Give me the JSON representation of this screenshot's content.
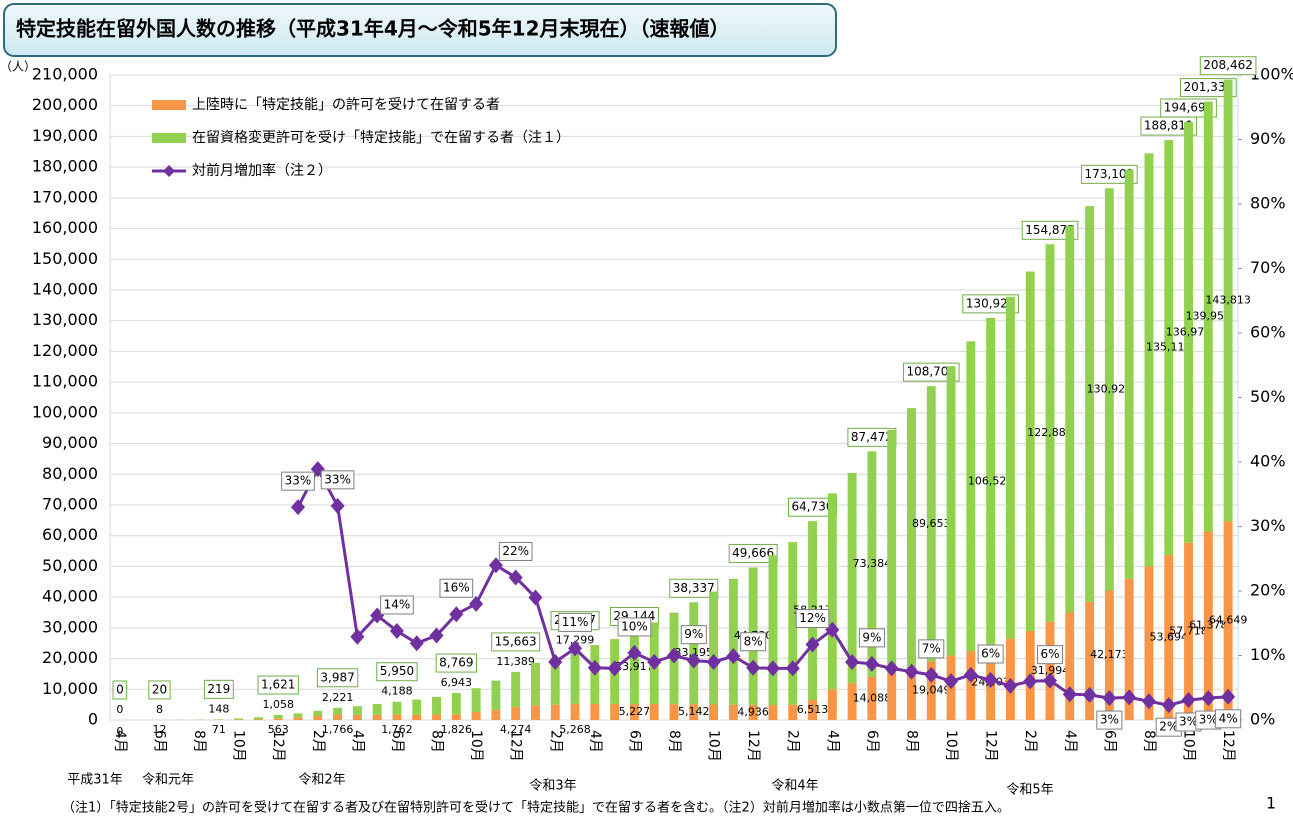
{
  "chart_data": {
    "type": "bar",
    "title": "特定技能在留外国人数の推移（平成31年4月～令和5年12月末現在）（速報値）",
    "y_unit": "（人）",
    "footnote": "（注1）「特定技能2号」の許可を受けて在留する者及び在留特別許可を受けて「特定技能」で在留する者を含む。（注2）対前月増加率は小数点第一位で四捨五入。",
    "page_number": "1",
    "period_labels": [
      "平成31年",
      "令和元年",
      "令和2年",
      "令和3年",
      "令和4年",
      "令和5年"
    ],
    "categories": [
      "4月",
      null,
      "6月",
      null,
      "8月",
      null,
      "10月",
      null,
      "12月",
      null,
      "2月",
      null,
      "4月",
      null,
      "6月",
      null,
      "8月",
      null,
      "10月",
      null,
      "12月",
      null,
      "2月",
      null,
      "4月",
      null,
      "6月",
      null,
      "8月",
      null,
      "10月",
      null,
      "12月",
      null,
      "2月",
      null,
      "4月",
      null,
      "6月",
      null,
      "8月",
      null,
      "10月",
      null,
      "12月",
      null,
      "2月",
      null,
      "4月",
      null,
      "6月",
      null,
      "8月",
      null,
      "10月",
      null,
      "12月"
    ],
    "series": [
      {
        "name": "上陸時に「特定技能」の許可を受けて在留する者",
        "color": "#f79646",
        "values": [
          0,
          7,
          12,
          20,
          40,
          71,
          150,
          300,
          563,
          900,
          1300,
          1766,
          1650,
          1700,
          1762,
          1750,
          1780,
          1826,
          2600,
          3300,
          4274,
          4800,
          5000,
          5268,
          5200,
          5250,
          5227,
          5200,
          5150,
          5142,
          5050,
          5000,
          4936,
          4900,
          5000,
          6513,
          10000,
          12000,
          14088,
          15500,
          17500,
          19049,
          21000,
          22500,
          24403,
          26500,
          29000,
          31994,
          35000,
          38500,
          42173,
          46000,
          50000,
          53694,
          57718,
          61378,
          64649
        ],
        "value_labels": [
          "0",
          null,
          "12",
          null,
          null,
          "71",
          null,
          null,
          "563",
          null,
          null,
          "1,766",
          null,
          null,
          "1,762",
          null,
          null,
          "1,826",
          null,
          null,
          "4,274",
          null,
          null,
          "5,268",
          null,
          null,
          "5,227",
          null,
          null,
          "5,142",
          null,
          null,
          "4,936",
          null,
          null,
          "6,513",
          null,
          null,
          "14,088",
          null,
          null,
          "19,049",
          null,
          null,
          "24,403",
          null,
          null,
          "31,994",
          null,
          null,
          "42,173",
          null,
          null,
          "53,694",
          "57,718",
          "61,378",
          "64,649"
        ]
      },
      {
        "name": "在留資格変更許可を受け「特定技能」で在留する者（注１）",
        "color": "#92d050",
        "values": [
          0,
          3,
          8,
          30,
          60,
          148,
          350,
          600,
          1058,
          1256,
          1694,
          2221,
          2850,
          3530,
          4188,
          4910,
          5750,
          6943,
          7750,
          9530,
          11389,
          13840,
          15320,
          17299,
          19200,
          21100,
          23917,
          26570,
          29800,
          33195,
          36750,
          40960,
          44730,
          48740,
          52930,
          58217,
          63800,
          68440,
          73384,
          78970,
          84050,
          89653,
          94200,
          100800,
          106520,
          111300,
          117000,
          122881,
          126000,
          128800,
          130928,
          133200,
          134500,
          135117,
          136978,
          139958,
          143813
        ],
        "value_labels": [
          "0",
          null,
          "8",
          null,
          null,
          "148",
          null,
          null,
          "1,058",
          null,
          null,
          "2,221",
          null,
          null,
          "4,188",
          null,
          null,
          "6,943",
          null,
          null,
          "11,389",
          null,
          null,
          "17,299",
          null,
          null,
          "23,917",
          null,
          null,
          "33,195",
          null,
          null,
          "44,730",
          null,
          null,
          "58,217",
          null,
          null,
          "73,384",
          null,
          null,
          "89,653",
          null,
          null,
          "106,520",
          null,
          null,
          "122,881",
          null,
          null,
          "130,928",
          null,
          null,
          "135,117",
          "136,978",
          "139,958",
          "143,813"
        ]
      },
      {
        "name": "対前月増加率（注２）",
        "color": "#7030a0",
        "axis": "y2",
        "values": [
          null,
          null,
          null,
          null,
          null,
          null,
          null,
          null,
          null,
          33.0,
          38.9,
          33.2,
          12.9,
          16.2,
          13.8,
          11.9,
          13.1,
          16.4,
          18.0,
          24.0,
          22.1,
          19.0,
          9.0,
          11.1,
          8.1,
          8.0,
          10.4,
          9.0,
          10.0,
          9.2,
          9.0,
          9.9,
          8.1,
          8.0,
          8.0,
          11.7,
          14.0,
          9.0,
          8.7,
          8.0,
          7.5,
          7.0,
          6.0,
          7.0,
          6.2,
          5.3,
          6.0,
          6.1,
          4.0,
          3.9,
          3.4,
          3.5,
          2.9,
          2.3,
          3.1,
          3.4,
          3.6
        ],
        "value_labels": [
          null,
          null,
          null,
          null,
          null,
          null,
          null,
          null,
          null,
          "33%",
          null,
          "33%",
          null,
          null,
          "14%",
          null,
          null,
          "16%",
          null,
          null,
          "22%",
          null,
          null,
          "11%",
          null,
          null,
          "10%",
          null,
          null,
          "9%",
          null,
          null,
          "8%",
          null,
          null,
          "12%",
          null,
          null,
          "9%",
          null,
          null,
          "7%",
          null,
          null,
          "6%",
          null,
          null,
          "6%",
          null,
          null,
          "3%",
          null,
          null,
          "2%",
          "3%",
          "3%",
          "4%"
        ]
      }
    ],
    "total_labels": [
      "0",
      null,
      "20",
      null,
      null,
      "219",
      null,
      null,
      "1,621",
      null,
      null,
      "3,987",
      null,
      null,
      "5,950",
      null,
      null,
      "8,769",
      null,
      null,
      "15,663",
      null,
      null,
      "22,567",
      null,
      null,
      "29,144",
      null,
      null,
      "38,337",
      null,
      null,
      "49,666",
      null,
      null,
      "64,730",
      null,
      null,
      "87,472",
      null,
      null,
      "108,702",
      null,
      null,
      "130,923",
      null,
      null,
      "154,875",
      null,
      null,
      "173,101",
      null,
      null,
      "188,811",
      "194,696",
      "201,336",
      "208,462"
    ],
    "ylim": [
      0,
      210000
    ],
    "yticks": [
      0,
      {
        "value": 10000,
        "label": "10,000"
      },
      {
        "value": 20000,
        "label": "20,000"
      },
      {
        "value": 30000,
        "label": "30,000"
      },
      {
        "value": 40000,
        "label": "40,000"
      },
      {
        "value": 50000,
        "label": "50,000"
      },
      {
        "value": 60000,
        "label": "60,000"
      },
      {
        "value": 70000,
        "label": "70,000"
      },
      {
        "value": 80000,
        "label": "80,000"
      },
      {
        "value": 90000,
        "label": "90,000"
      },
      {
        "value": 100000,
        "label": "100,000"
      },
      {
        "value": 110000,
        "label": "110,000"
      },
      {
        "value": 120000,
        "label": "120,000"
      },
      {
        "value": 130000,
        "label": "130,000"
      },
      {
        "value": 140000,
        "label": "140,000"
      },
      {
        "value": 150000,
        "label": "150,000"
      },
      {
        "value": 160000,
        "label": "160,000"
      },
      {
        "value": 170000,
        "label": "170,000"
      },
      {
        "value": 180000,
        "label": "180,000"
      },
      {
        "value": 190000,
        "label": "190,000"
      },
      {
        "value": 200000,
        "label": "200,000"
      },
      {
        "value": 210000,
        "label": "210,000"
      }
    ],
    "y2lim": [
      0,
      100
    ],
    "y2ticks": [
      {
        "value": 0,
        "label": "0%"
      },
      {
        "value": 10,
        "label": "10%"
      },
      {
        "value": 20,
        "label": "20%"
      },
      {
        "value": 30,
        "label": "30%"
      },
      {
        "value": 40,
        "label": "40%"
      },
      {
        "value": 50,
        "label": "50%"
      },
      {
        "value": 60,
        "label": "60%"
      },
      {
        "value": 70,
        "label": "70%"
      },
      {
        "value": 80,
        "label": "80%"
      },
      {
        "value": 90,
        "label": "90%"
      },
      {
        "value": 100,
        "label": "100%"
      }
    ],
    "grid": true,
    "legend": "top-left"
  }
}
